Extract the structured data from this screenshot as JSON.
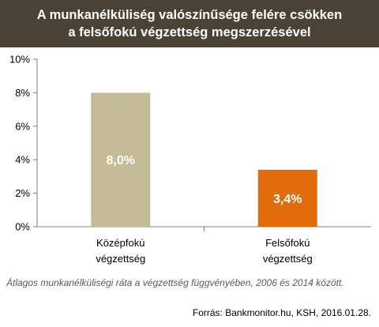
{
  "title_line1": "A munkanélküliség valószínűsége felére csökken",
  "title_line2": "a felsőfokú végzettség megszerzésével",
  "chart_data": {
    "type": "bar",
    "categories": [
      [
        "Középfokú",
        "végzettség"
      ],
      [
        "Felsőfokú",
        "végzettség"
      ]
    ],
    "values": [
      8.0,
      3.4
    ],
    "data_labels": [
      "8,0%",
      "3,4%"
    ],
    "bar_colors": [
      "#c4bc96",
      "#e36c0a"
    ],
    "yticks": [
      "0%",
      "2%",
      "4%",
      "6%",
      "8%",
      "10%"
    ],
    "ylim": [
      0,
      10
    ],
    "grid": false,
    "xlabel": "",
    "ylabel": ""
  },
  "footnote": "Átlagos munkanélküliségi ráta a végzettség függvényében, 2006 és 2014 között.",
  "source": "Forrás: Bankmonitor.hu, KSH, 2016.01.28."
}
